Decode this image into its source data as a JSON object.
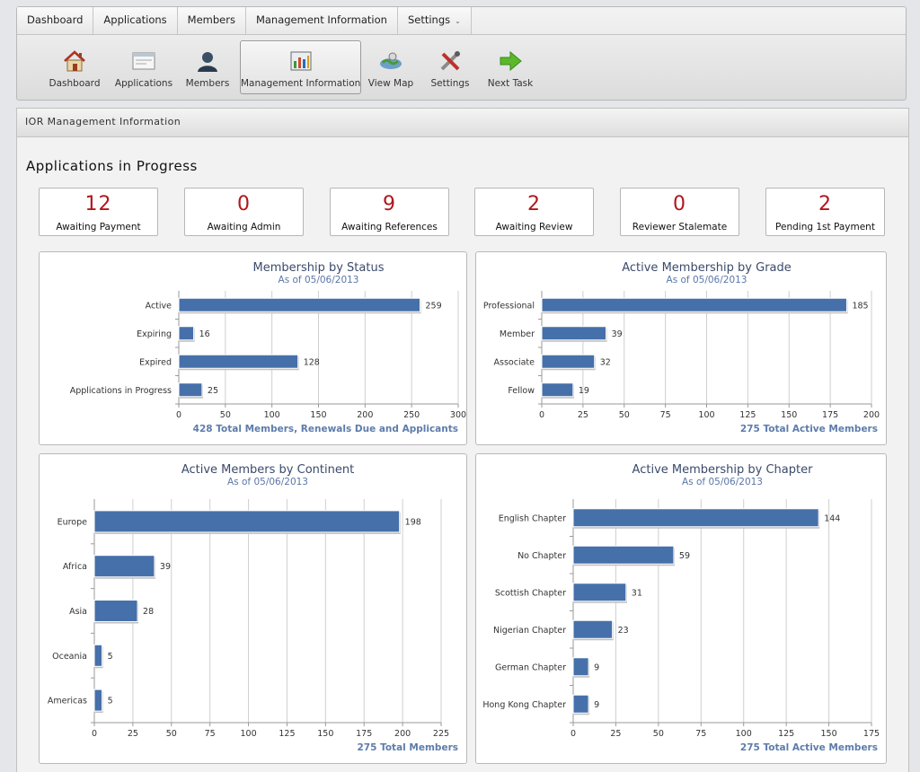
{
  "menu": [
    {
      "label": "Dashboard"
    },
    {
      "label": "Applications"
    },
    {
      "label": "Members"
    },
    {
      "label": "Management Information"
    },
    {
      "label": "Settings"
    }
  ],
  "toolbar": [
    {
      "label": "Dashboard",
      "icon": "house-icon"
    },
    {
      "label": "Applications",
      "icon": "window-icon"
    },
    {
      "label": "Members",
      "icon": "person-icon"
    },
    {
      "label": "Management Information",
      "icon": "chart-icon",
      "active": true
    },
    {
      "label": "View Map",
      "icon": "map-icon"
    },
    {
      "label": "Settings",
      "icon": "tools-icon"
    },
    {
      "label": "Next Task",
      "icon": "arrow-icon"
    }
  ],
  "panel": {
    "header": "IOR Management Information",
    "section_title": "Applications in Progress"
  },
  "stats": [
    {
      "value": "12",
      "label": "Awaiting Payment"
    },
    {
      "value": "0",
      "label": "Awaiting Admin"
    },
    {
      "value": "9",
      "label": "Awaiting References"
    },
    {
      "value": "2",
      "label": "Awaiting Review"
    },
    {
      "value": "0",
      "label": "Reviewer Stalemate"
    },
    {
      "value": "2",
      "label": "Pending 1st Payment"
    }
  ],
  "colors": {
    "bar": "#4670aa",
    "stat_number": "#b0161d",
    "title": "#3b4a6a",
    "subtitle": "#5a76a8"
  },
  "chart_data": [
    {
      "type": "bar",
      "orientation": "horizontal",
      "title": "Membership by Status",
      "subtitle": "As of 05/06/2013",
      "categories": [
        "Active",
        "Expiring",
        "Expired",
        "Applications in Progress"
      ],
      "values": [
        259,
        16,
        128,
        25
      ],
      "xlim": [
        0,
        300
      ],
      "ticks": [
        0,
        50,
        100,
        150,
        200,
        250,
        300
      ],
      "footer": "428 Total Members, Renewals Due and Applicants",
      "grid": true
    },
    {
      "type": "bar",
      "orientation": "horizontal",
      "title": "Active Membership by Grade",
      "subtitle": "As of 05/06/2013",
      "categories": [
        "Professional",
        "Member",
        "Associate",
        "Fellow"
      ],
      "values": [
        185,
        39,
        32,
        19
      ],
      "xlim": [
        0,
        200
      ],
      "ticks": [
        0,
        25,
        50,
        75,
        100,
        125,
        150,
        175,
        200
      ],
      "footer": "275 Total Active Members",
      "grid": true
    },
    {
      "type": "bar",
      "orientation": "horizontal",
      "title": "Active Members by Continent",
      "subtitle": "As of 05/06/2013",
      "categories": [
        "Europe",
        "Africa",
        "Asia",
        "Oceania",
        "Americas"
      ],
      "values": [
        198,
        39,
        28,
        5,
        5
      ],
      "xlim": [
        0,
        225
      ],
      "ticks": [
        0,
        25,
        50,
        75,
        100,
        125,
        150,
        175,
        200,
        225
      ],
      "footer": "275 Total Members",
      "grid": true
    },
    {
      "type": "bar",
      "orientation": "horizontal",
      "title": "Active Membership by Chapter",
      "subtitle": "As of 05/06/2013",
      "categories": [
        "English Chapter",
        "No Chapter",
        "Scottish Chapter",
        "Nigerian Chapter",
        "German Chapter",
        "Hong Kong Chapter"
      ],
      "values": [
        144,
        59,
        31,
        23,
        9,
        9
      ],
      "xlim": [
        0,
        175
      ],
      "ticks": [
        0,
        25,
        50,
        75,
        100,
        125,
        150,
        175
      ],
      "footer": "275 Total Active Members",
      "grid": true
    }
  ]
}
